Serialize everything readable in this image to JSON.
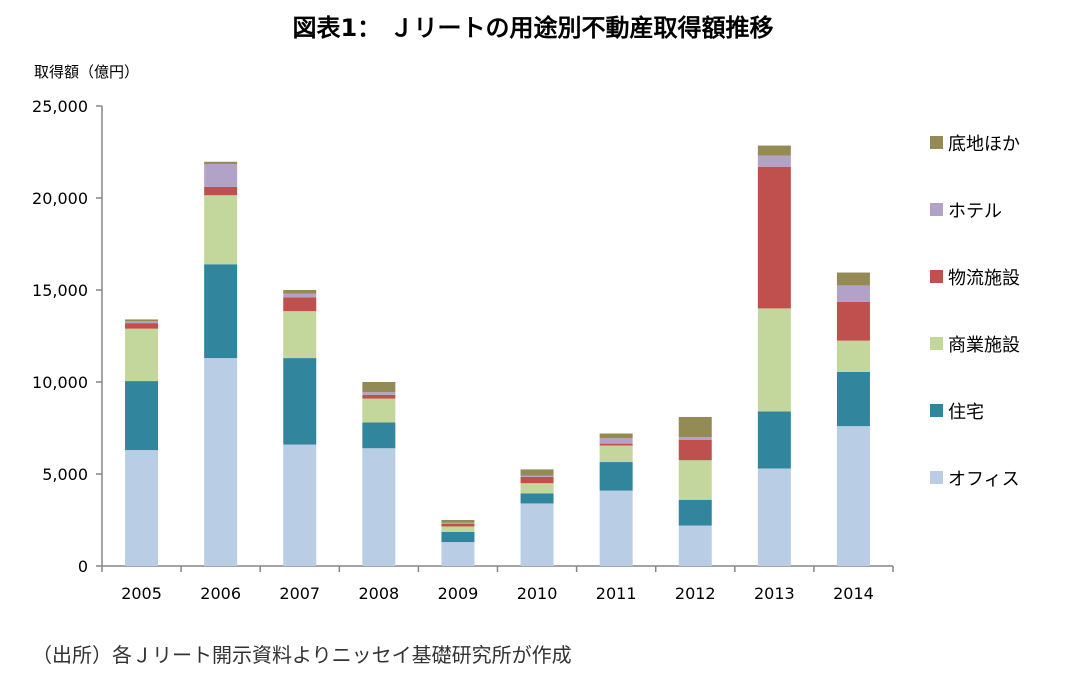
{
  "chart_data": {
    "type": "bar",
    "stacked": true,
    "title": "図表1： Ｊリートの用途別不動産取得額推移",
    "ylabel": "取得額（億円）",
    "xlabel": "",
    "ylim": [
      0,
      25000
    ],
    "yticks": [
      "0",
      "5,000",
      "10,000",
      "15,000",
      "20,000",
      "25,000"
    ],
    "ytick_values": [
      0,
      5000,
      10000,
      15000,
      20000,
      25000
    ],
    "grid": false,
    "legend_position": "right",
    "categories": [
      "2005",
      "2006",
      "2007",
      "2008",
      "2009",
      "2010",
      "2011",
      "2012",
      "2013",
      "2014"
    ],
    "series": [
      {
        "name": "オフィス",
        "color": "#b9cde5",
        "values": [
          6300,
          11300,
          6600,
          6400,
          1300,
          3400,
          4100,
          2200,
          5300,
          7600
        ]
      },
      {
        "name": "住宅",
        "color": "#31859c",
        "values": [
          3750,
          5100,
          4700,
          1400,
          550,
          550,
          1550,
          1400,
          3100,
          2950
        ]
      },
      {
        "name": "商業施設",
        "color": "#c3d69b",
        "values": [
          2850,
          3750,
          2550,
          1300,
          300,
          550,
          900,
          2150,
          5600,
          1700
        ]
      },
      {
        "name": "物流施設",
        "color": "#c0504d",
        "values": [
          300,
          450,
          750,
          200,
          150,
          350,
          100,
          1100,
          7700,
          2100
        ]
      },
      {
        "name": "ホテル",
        "color": "#b3a2c7",
        "values": [
          100,
          1250,
          200,
          150,
          50,
          50,
          300,
          150,
          600,
          900
        ]
      },
      {
        "name": "底地ほか",
        "color": "#948a54",
        "values": [
          100,
          120,
          200,
          550,
          150,
          350,
          250,
          1100,
          550,
          700
        ]
      }
    ],
    "legend_order": [
      "底地ほか",
      "ホテル",
      "物流施設",
      "商業施設",
      "住宅",
      "オフィス"
    ]
  },
  "source_note": "（出所）各Ｊリート開示資料よりニッセイ基礎研究所が作成"
}
